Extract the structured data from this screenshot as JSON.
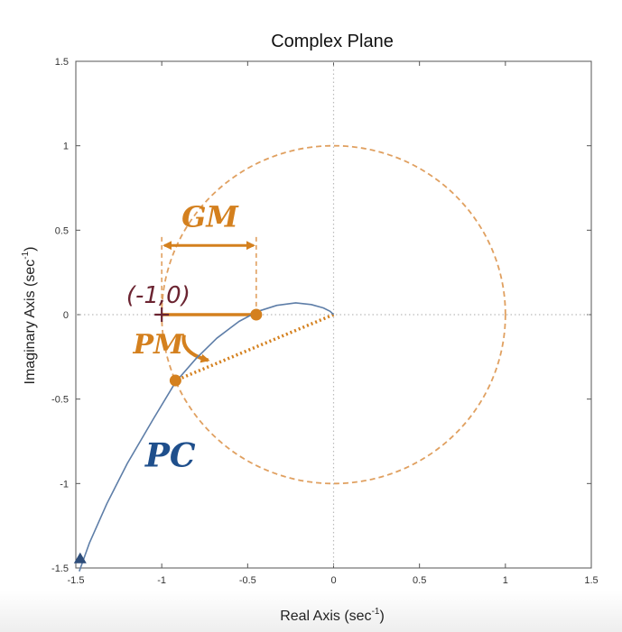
{
  "chart_data": {
    "type": "line",
    "title": "Complex Plane",
    "xlabel": "Real Axis (sec",
    "xlabel_sup": "-1",
    "xlabel_end": ")",
    "ylabel": "Imaginary Axis (sec",
    "ylabel_sup": "-1",
    "ylabel_end": ")",
    "xlim": [
      -1.5,
      1.5
    ],
    "ylim": [
      -1.5,
      1.5
    ],
    "xticks": [
      -1.5,
      -1,
      -0.5,
      0,
      0.5,
      1,
      1.5
    ],
    "xtick_labels": [
      "-1.5",
      "-1",
      "-0.5",
      "0",
      "0.5",
      "1",
      "1.5"
    ],
    "yticks": [
      -1.5,
      -1,
      -0.5,
      0,
      0.5,
      1,
      1.5
    ],
    "ytick_labels": [
      "-1.5",
      "-1",
      "-0.5",
      "0",
      "0.5",
      "1",
      "1.5"
    ],
    "grid": "dotted-zero-lines",
    "series": [
      {
        "x": [
          -1.48,
          -1.42,
          -1.32,
          -1.2,
          -1.05,
          -0.92,
          -0.8,
          -0.68,
          -0.55,
          -0.44,
          -0.33,
          -0.22,
          -0.13,
          -0.06,
          -0.02,
          0.0
        ],
        "y": [
          -1.52,
          -1.35,
          -1.12,
          -0.88,
          -0.62,
          -0.4,
          -0.26,
          -0.14,
          -0.04,
          0.02,
          0.055,
          0.07,
          0.06,
          0.04,
          0.02,
          0.0
        ],
        "color": "#5e7ea8"
      }
    ],
    "unit_circle": {
      "center": [
        0,
        0
      ],
      "radius": 1,
      "color": "#d9934a"
    },
    "annotations": [
      {
        "text": "(-1,0)",
        "x": -1.02,
        "y": 0.07,
        "color": "#6b2431"
      },
      {
        "text": "GM",
        "x": -0.72,
        "y": 0.52,
        "color": "#d4801e"
      },
      {
        "text": "PM",
        "x": -1.02,
        "y": -0.23,
        "color": "#d4801e"
      },
      {
        "text": "PC",
        "x": -0.95,
        "y": -0.9,
        "color": "#1f4f8c"
      }
    ],
    "markers": [
      {
        "name": "gain-crossover",
        "x": -0.45,
        "y": 0.0
      },
      {
        "name": "phase-crossover",
        "x": -0.92,
        "y": -0.39
      },
      {
        "name": "critical-point",
        "x": -1.0,
        "y": 0.0
      }
    ],
    "colors": {
      "orange": "#d4801e",
      "dashed_orange": "#e0a060",
      "curve": "#5e7ea8",
      "pc_label": "#1f4f8c",
      "critical": "#6b2431",
      "zero_lines": "#bbbbbb"
    }
  }
}
